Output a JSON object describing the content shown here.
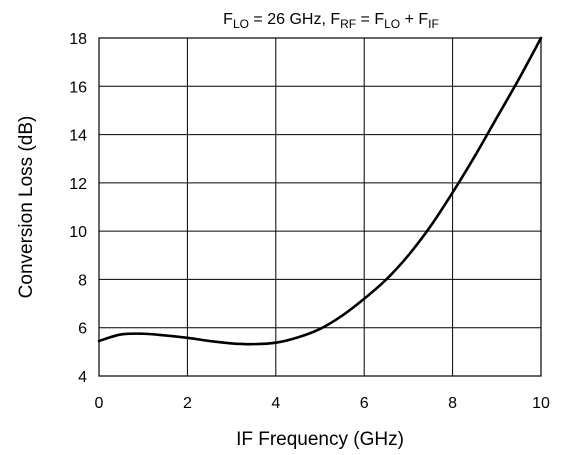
{
  "chart_data": {
    "type": "line",
    "title": {
      "parts": [
        {
          "text": "F",
          "sub": false
        },
        {
          "text": "LO",
          "sub": true
        },
        {
          "text": " = 26 GHz, F",
          "sub": false
        },
        {
          "text": "RF",
          "sub": true
        },
        {
          "text": " = F",
          "sub": false
        },
        {
          "text": "LO",
          "sub": true
        },
        {
          "text": " + F",
          "sub": false
        },
        {
          "text": "IF",
          "sub": true
        }
      ]
    },
    "xlabel": "IF Frequency (GHz)",
    "ylabel": "Conversion Loss (dB)",
    "xlim": [
      0,
      10
    ],
    "ylim": [
      4,
      18
    ],
    "xticks": [
      "0",
      "2",
      "4",
      "6",
      "8",
      "10"
    ],
    "yticks": [
      "4",
      "6",
      "8",
      "10",
      "12",
      "14",
      "16",
      "18"
    ],
    "grid": true,
    "series": [
      {
        "color": "#000000",
        "x": [
          0,
          0.5,
          1,
          1.5,
          2,
          2.5,
          3,
          3.5,
          4,
          4.5,
          5,
          5.5,
          6,
          6.5,
          7,
          7.5,
          8,
          8.5,
          9,
          9.5,
          10
        ],
        "y": [
          5.45,
          5.72,
          5.75,
          5.68,
          5.58,
          5.45,
          5.35,
          5.32,
          5.38,
          5.6,
          5.95,
          6.5,
          7.2,
          8.0,
          9.0,
          10.2,
          11.6,
          13.1,
          14.7,
          16.3,
          18.0
        ]
      }
    ]
  }
}
